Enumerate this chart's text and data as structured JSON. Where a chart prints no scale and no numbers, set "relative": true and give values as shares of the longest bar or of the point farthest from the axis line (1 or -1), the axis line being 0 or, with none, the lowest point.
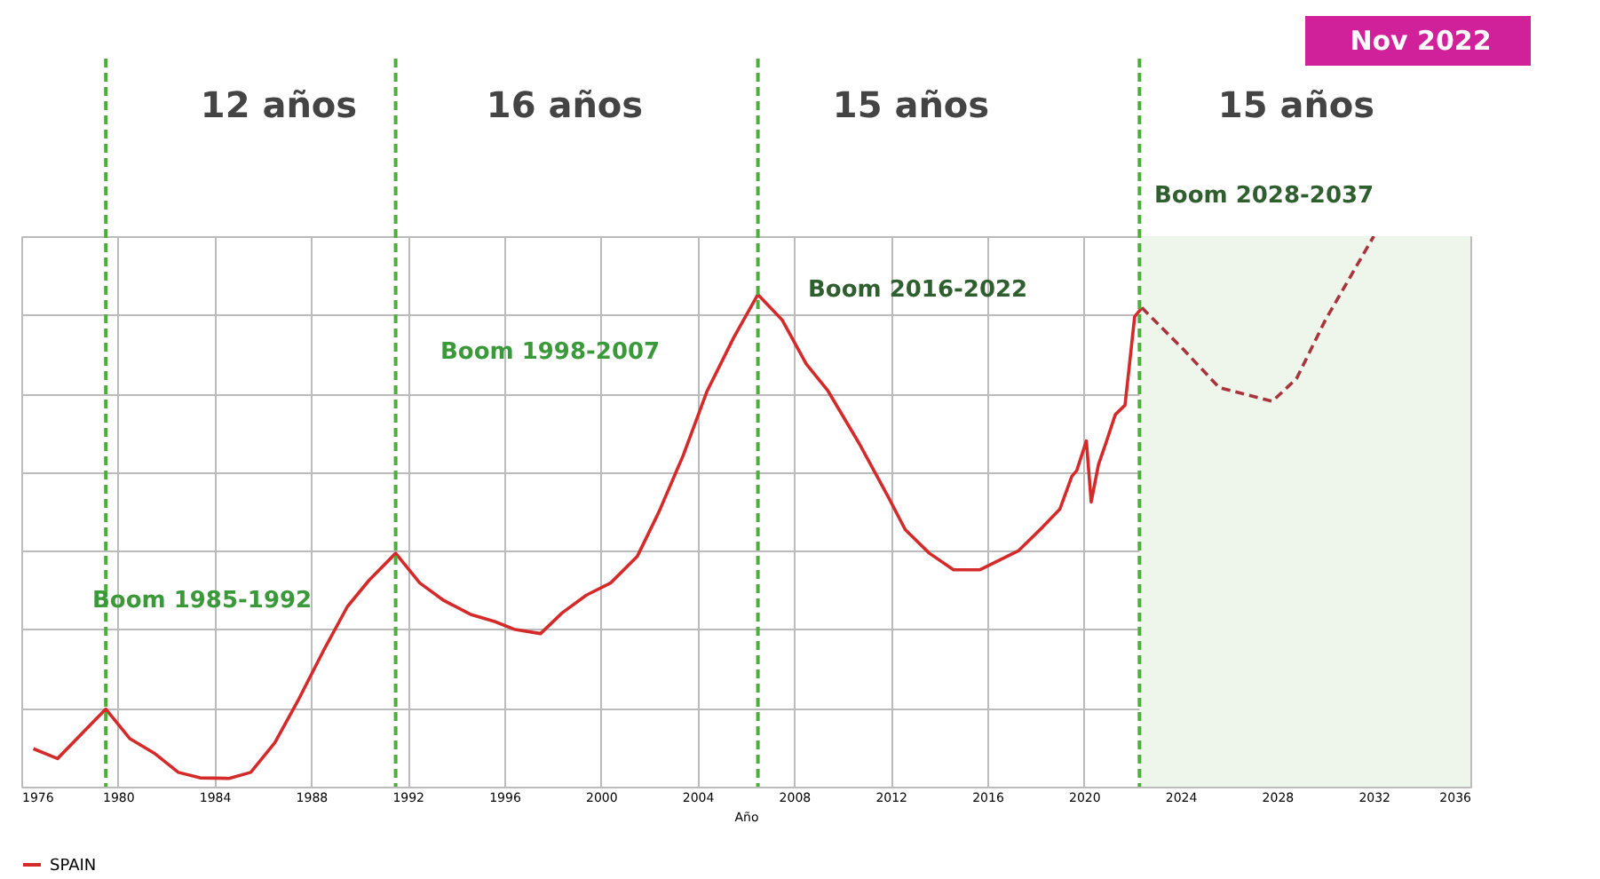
{
  "chart_data": {
    "type": "line",
    "relative": true,
    "xlabel": "Año",
    "xlim": [
      1976,
      2036
    ],
    "xticks": [
      1976,
      1980,
      1984,
      1988,
      1992,
      1996,
      2000,
      2004,
      2008,
      2012,
      2016,
      2020,
      2024,
      2028,
      2032,
      2036
    ],
    "grid": true,
    "legend": "bottom",
    "series": [
      {
        "name": "SPAIN",
        "color": "#d42a2a",
        "line_style": "solid",
        "x": [
          1976.5,
          1977.5,
          1979.5,
          1980.5,
          1981.5,
          1982.5,
          1983.4,
          1984.6,
          1985.5,
          1986.5,
          1987.5,
          1988.5,
          1989.5,
          1990.4,
          1991.5,
          1992.5,
          1993.5,
          1994.6,
          1995.6,
          1996.4,
          1997.5,
          1998.4,
          1999.4,
          2000.4,
          2001.5,
          2002.4,
          2003.4,
          2004.4,
          2005.5,
          2006.5,
          2007.5,
          2008.5,
          2009.4,
          2010.7,
          2011.9,
          2012.6,
          2013.6,
          2014.6,
          2015.7,
          2017.3,
          2018.3,
          2019.0,
          2019.5,
          2019.7,
          2020.1,
          2020.3,
          2020.6,
          2020.9,
          2021.3,
          2021.7,
          2021.9,
          2022.1,
          2022.4
        ],
        "values": [
          0.069,
          0.051,
          0.141,
          0.087,
          0.061,
          0.026,
          0.016,
          0.015,
          0.026,
          0.08,
          0.16,
          0.246,
          0.327,
          0.375,
          0.424,
          0.37,
          0.338,
          0.313,
          0.3,
          0.286,
          0.278,
          0.316,
          0.348,
          0.37,
          0.418,
          0.499,
          0.601,
          0.719,
          0.816,
          0.894,
          0.848,
          0.768,
          0.719,
          0.623,
          0.526,
          0.467,
          0.424,
          0.394,
          0.394,
          0.429,
          0.472,
          0.504,
          0.564,
          0.574,
          0.628,
          0.517,
          0.585,
          0.623,
          0.676,
          0.693,
          0.773,
          0.854,
          0.87
        ]
      },
      {
        "color": "#a8343e",
        "line_style": "dashed",
        "x": [
          2022.4,
          2024.1,
          2025.6,
          2027.8,
          2028.8,
          2030.0,
          2032.0
        ],
        "values": [
          0.87,
          0.795,
          0.725,
          0.7,
          0.741,
          0.848,
          1.0
        ]
      }
    ],
    "ref_lines": [
      {
        "axis": "x",
        "value": 1979.5,
        "color": "#4caf3a",
        "line_style": "dashed"
      },
      {
        "axis": "x",
        "value": 1991.5,
        "color": "#4caf3a",
        "line_style": "dashed"
      },
      {
        "axis": "x",
        "value": 2006.5,
        "color": "#4caf3a",
        "line_style": "dashed"
      },
      {
        "axis": "x",
        "value": 2022.3,
        "color": "#4caf3a",
        "line_style": "dashed"
      }
    ],
    "bands": [
      {
        "axis": "x",
        "from": 2022.3,
        "to": 2036,
        "color": "#eef5ea"
      }
    ],
    "annotations": [
      "Nov 2022",
      "12 años",
      "16 años",
      "15 años",
      "15 años",
      "Boom 1985-1992",
      "Boom 1998-2007",
      "Boom 2016-2022",
      "Boom 2028-2037"
    ]
  }
}
